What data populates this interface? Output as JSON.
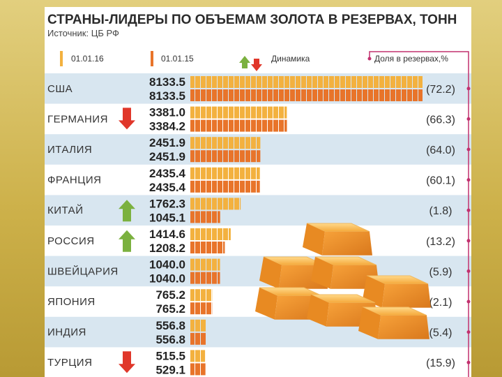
{
  "chart_data": {
    "type": "bar",
    "title": "СТРАНЫ-ЛИДЕРЫ ПО ОБЪЕМАМ ЗОЛОТА В РЕЗЕРВАХ, ТОНН",
    "subtitle": "Источник: ЦБ РФ",
    "legend": {
      "series_labels": [
        "01.01.16",
        "01.01.15"
      ],
      "dynamics_label": "Динамика",
      "share_label": "Доля в резервах,%"
    },
    "categories": [
      "США",
      "ГЕРМАНИЯ",
      "ИТАЛИЯ",
      "ФРАНЦИЯ",
      "КИТАЙ",
      "РОССИЯ",
      "ШВЕЙЦАРИЯ",
      "ЯПОНИЯ",
      "ИНДИЯ",
      "ТУРЦИЯ"
    ],
    "series": [
      {
        "name": "01.01.16",
        "values": [
          8133.5,
          3381.0,
          2451.9,
          2435.4,
          1762.3,
          1414.6,
          1040.0,
          765.2,
          556.8,
          515.5
        ]
      },
      {
        "name": "01.01.15",
        "values": [
          8133.5,
          3384.2,
          2451.9,
          2435.4,
          1045.1,
          1208.2,
          1040.0,
          765.2,
          556.8,
          529.1
        ]
      }
    ],
    "value_labels": [
      [
        "8133.5",
        "8133.5"
      ],
      [
        "3381.0",
        "3384.2"
      ],
      [
        "2451.9",
        "2451.9"
      ],
      [
        "2435.4",
        "2435.4"
      ],
      [
        "1762.3",
        "1045.1"
      ],
      [
        "1414.6",
        "1208.2"
      ],
      [
        "1040.0",
        "1040.0"
      ],
      [
        "765.2",
        "765.2"
      ],
      [
        "556.8",
        "556.8"
      ],
      [
        "515.5",
        "529.1"
      ]
    ],
    "dynamics": [
      "none",
      "down",
      "none",
      "none",
      "up",
      "up",
      "none",
      "none",
      "none",
      "down"
    ],
    "share_labels": [
      "(72.2)",
      "(66.3)",
      "(64.0)",
      "(60.1)",
      "(1.8)",
      "(13.2)",
      "(5.9)",
      "(2.1)",
      "(5.4)",
      "(15.9)"
    ],
    "share_values": [
      72.2,
      66.3,
      64.0,
      60.1,
      1.8,
      13.2,
      5.9,
      2.1,
      5.4,
      15.9
    ],
    "colors": {
      "series_2016": "#f3b13f",
      "series_2015": "#e8742a",
      "row_stripe": "#d8e6f0",
      "arrow_up": "#7bb13f",
      "arrow_down": "#e0372a",
      "share_line": "#c2306e"
    },
    "decoration": "gold-bars-illustration"
  }
}
